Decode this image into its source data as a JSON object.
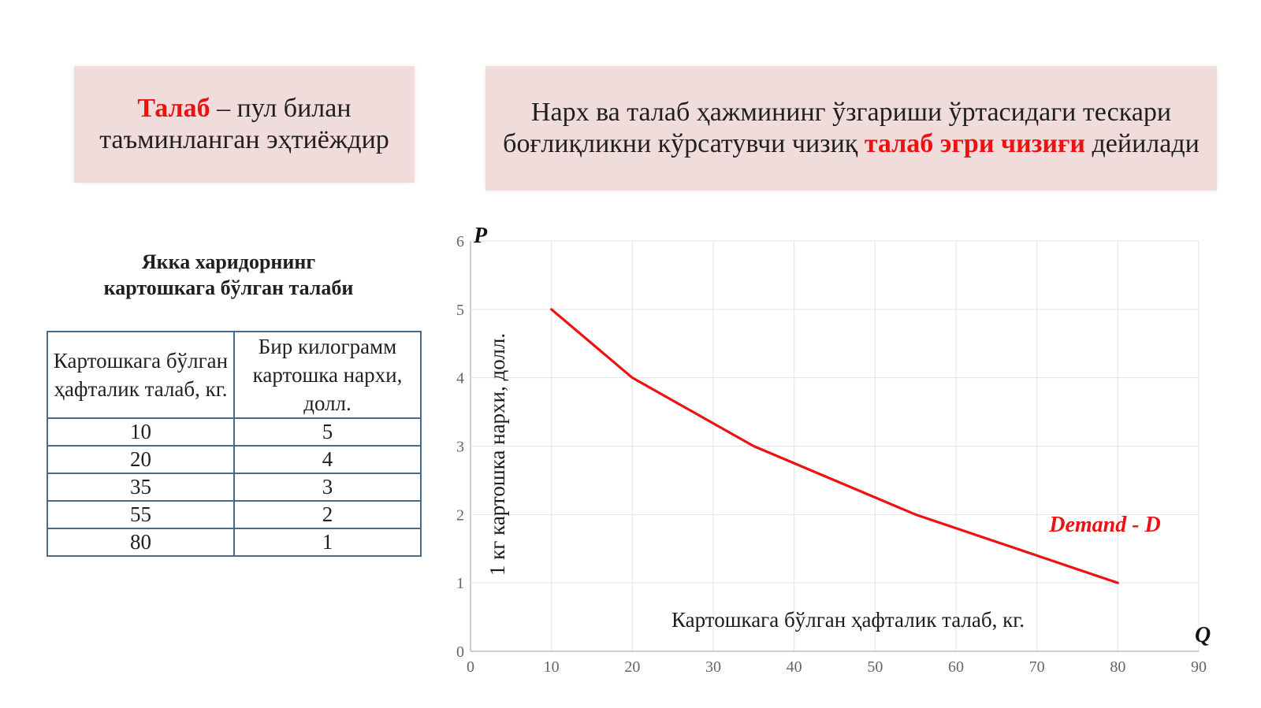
{
  "definition_box": {
    "term": "Талаб",
    "text": " – пул билан таъминланган эҳтиёждир"
  },
  "curve_box": {
    "text_before": "Нарх ва талаб ҳажмининг ўзгариши ўртасидаги тескари боғлиқликни кўрсатувчи чизиқ ",
    "highlight": "талаб эгри чизиғи",
    "text_after": " дейилади"
  },
  "table": {
    "title_line1": "Якка харидорнинг",
    "title_line2": "картошкага бўлган талаби",
    "headers": [
      "Картошкага бўлган ҳафталик талаб, кг.",
      "Бир килограмм картошка нархи, долл."
    ],
    "rows": [
      [
        "10",
        "5"
      ],
      [
        "20",
        "4"
      ],
      [
        "35",
        "3"
      ],
      [
        "55",
        "2"
      ],
      [
        "80",
        "1"
      ]
    ]
  },
  "chart_data": {
    "type": "line",
    "xlabel": "Картошкага бўлган ҳафталик талаб, кг.",
    "ylabel": "1 кг картошка нархи, долл.",
    "x_axis_letter": "Q",
    "y_axis_letter": "P",
    "xlim": [
      0,
      90
    ],
    "ylim": [
      0,
      6
    ],
    "xticks": [
      0,
      10,
      20,
      30,
      40,
      50,
      60,
      70,
      80,
      90
    ],
    "yticks": [
      0,
      1,
      2,
      3,
      4,
      5,
      6
    ],
    "grid": true,
    "series": [
      {
        "name": "Demand - D",
        "color": "#ee1111",
        "x": [
          10,
          20,
          35,
          55,
          80
        ],
        "y": [
          5,
          4,
          3,
          2,
          1
        ]
      }
    ]
  }
}
